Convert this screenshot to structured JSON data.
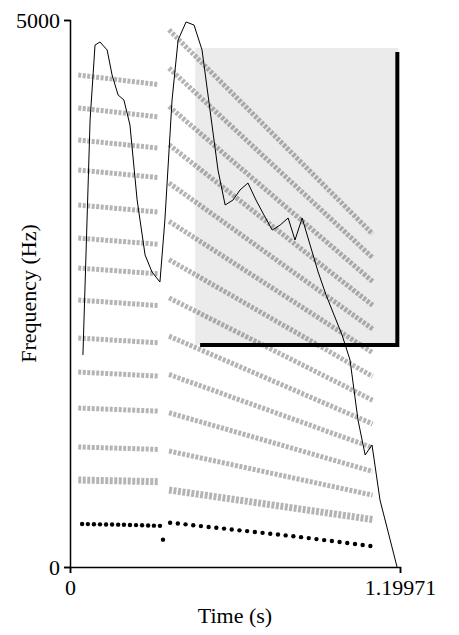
{
  "chart_data": {
    "type": "spectrogram",
    "x_label": "Time (s)",
    "y_label": "Frequency (Hz)",
    "xlim": [
      0,
      1.19971
    ],
    "ylim": [
      0,
      5000
    ],
    "xticks": [
      0,
      1.19971
    ],
    "yticks": [
      0,
      5000
    ],
    "highlight": {
      "x": [
        0.455,
        1.193
      ],
      "y": [
        2029,
        4744
      ],
      "color": "#ebebeb"
    },
    "bracket": {
      "x": [
        0.473,
        1.19
      ],
      "y": [
        2029,
        4707
      ],
      "color": "#000000"
    },
    "harmonics": [
      {
        "x": [
          0.03,
          0.32
        ],
        "values": [
          795,
          780
        ]
      },
      {
        "x": [
          0.03,
          0.32
        ],
        "values": [
          1097,
          1075
        ]
      },
      {
        "x": [
          0.03,
          0.32
        ],
        "values": [
          1453,
          1425
        ]
      },
      {
        "x": [
          0.03,
          0.32
        ],
        "values": [
          1782,
          1745
        ]
      },
      {
        "x": [
          0.03,
          0.32
        ],
        "values": [
          2093,
          2050
        ]
      },
      {
        "x": [
          0.03,
          0.32
        ],
        "values": [
          2440,
          2390
        ]
      },
      {
        "x": [
          0.03,
          0.32
        ],
        "values": [
          2733,
          2680
        ]
      },
      {
        "x": [
          0.03,
          0.32
        ],
        "values": [
          3007,
          2950
        ]
      },
      {
        "x": [
          0.03,
          0.32
        ],
        "values": [
          3309,
          3245
        ]
      },
      {
        "x": [
          0.03,
          0.32
        ],
        "values": [
          3629,
          3560
        ]
      },
      {
        "x": [
          0.03,
          0.32
        ],
        "values": [
          3903,
          3830
        ]
      },
      {
        "x": [
          0.03,
          0.32
        ],
        "values": [
          4196,
          4115
        ]
      },
      {
        "x": [
          0.03,
          0.32
        ],
        "values": [
          4497,
          4410
        ]
      },
      {
        "x": [
          0.36,
          1.1
        ],
        "values": [
          704,
          434
        ]
      },
      {
        "x": [
          0.36,
          1.1
        ],
        "values": [
          1060,
          657
        ]
      },
      {
        "x": [
          0.36,
          1.1
        ],
        "values": [
          1410,
          874
        ]
      },
      {
        "x": [
          0.36,
          1.1
        ],
        "values": [
          1760,
          1091
        ]
      },
      {
        "x": [
          0.36,
          1.1
        ],
        "values": [
          2110,
          1308
        ]
      },
      {
        "x": [
          0.36,
          1.1
        ],
        "values": [
          2460,
          1525
        ]
      },
      {
        "x": [
          0.36,
          1.1
        ],
        "values": [
          2810,
          1742
        ]
      },
      {
        "x": [
          0.36,
          1.1
        ],
        "values": [
          3160,
          1959
        ]
      },
      {
        "x": [
          0.36,
          1.1
        ],
        "values": [
          3510,
          2176
        ]
      },
      {
        "x": [
          0.36,
          1.1
        ],
        "values": [
          3860,
          2393
        ]
      },
      {
        "x": [
          0.36,
          1.1
        ],
        "values": [
          4210,
          2610
        ]
      },
      {
        "x": [
          0.36,
          1.1
        ],
        "values": [
          4560,
          2827
        ]
      },
      {
        "x": [
          0.36,
          1.1
        ],
        "values": [
          4910,
          3044
        ]
      }
    ],
    "harmonics_color": "#4d4d4d",
    "series": [
      {
        "type": "scatter",
        "marker": "circle",
        "color": "#000000",
        "x": [
          0.044,
          0.065,
          0.087,
          0.109,
          0.131,
          0.153,
          0.175,
          0.196,
          0.218,
          0.24,
          0.262,
          0.284,
          0.305,
          0.327,
          0.338,
          0.364,
          0.392,
          0.42,
          0.448,
          0.476,
          0.504,
          0.532,
          0.56,
          0.588,
          0.616,
          0.644,
          0.672,
          0.7,
          0.728,
          0.756,
          0.784,
          0.812,
          0.84,
          0.868,
          0.896,
          0.924,
          0.952,
          0.98,
          1.008,
          1.036,
          1.064,
          1.092
        ],
        "values": [
          393,
          392,
          391,
          390,
          389,
          388,
          387,
          386,
          384,
          383,
          382,
          380,
          378,
          376,
          250,
          405,
          397,
          390,
          382,
          374,
          366,
          359,
          351,
          343,
          335,
          328,
          320,
          312,
          304,
          297,
          289,
          281,
          273,
          264,
          255,
          246,
          237,
          228,
          219,
          210,
          201,
          192
        ]
      },
      {
        "type": "line",
        "line_style": "solid",
        "color": "#000000",
        "x": [
          0.047,
          0.073,
          0.091,
          0.109,
          0.135,
          0.153,
          0.175,
          0.196,
          0.218,
          0.244,
          0.273,
          0.298,
          0.327,
          0.345,
          0.371,
          0.393,
          0.422,
          0.451,
          0.48,
          0.509,
          0.538,
          0.564,
          0.593,
          0.618,
          0.647,
          0.676,
          0.705,
          0.735,
          0.764,
          0.793,
          0.818,
          0.844,
          0.873,
          0.902,
          0.931,
          0.96,
          0.989,
          1.018,
          1.047,
          1.073,
          1.098,
          1.127,
          1.164,
          1.189
        ],
        "values": [
          1938,
          4086,
          4771,
          4799,
          4726,
          4497,
          4314,
          4269,
          4040,
          3355,
          2852,
          2697,
          2605,
          3172,
          4269,
          4817,
          4982,
          4954,
          4726,
          4177,
          3629,
          3309,
          3355,
          3446,
          3510,
          3355,
          3218,
          3080,
          3126,
          3190,
          2989,
          3190,
          2943,
          2697,
          2486,
          2303,
          2121,
          1892,
          1344,
          1024,
          1115,
          612,
          247,
          0
        ]
      }
    ]
  }
}
